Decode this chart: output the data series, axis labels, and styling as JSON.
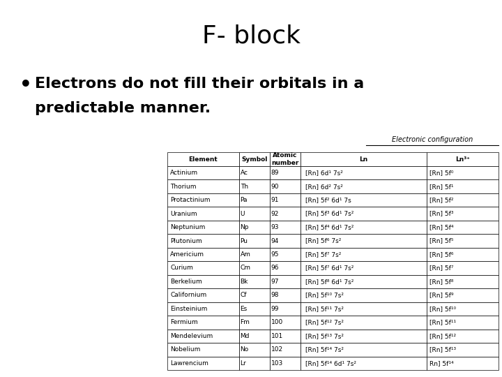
{
  "title": "F- block",
  "bullet_line1": "Electrons do not fill their orbitals in a",
  "bullet_line2": "predictable manner.",
  "table_title": "Electronic configuration",
  "col_headers": [
    "Element",
    "Symbol",
    "Atomic\nnumber",
    "Ln",
    "Ln³⁺"
  ],
  "rows": [
    [
      "Actinium",
      "Ac",
      "89",
      "[Rn] 6d¹ 7s²",
      "[Rn] 5f⁰"
    ],
    [
      "Thorium",
      "Th",
      "90",
      "[Rn] 6d² 7s²",
      "[Rn] 5f¹"
    ],
    [
      "Protactinium",
      "Pa",
      "91",
      "[Rn] 5f² 6d¹ 7s",
      "[Rn] 5f²"
    ],
    [
      "Uranium",
      "U",
      "92",
      "[Rn] 5f³ 6d¹ 7s²",
      "[Rn] 5f³"
    ],
    [
      "Neptunium",
      "Np",
      "93",
      "[Rn] 5f⁴ 6d¹ 7s²",
      "[Rn] 5f⁴"
    ],
    [
      "Plutonium",
      "Pu",
      "94",
      "[Rn] 5f⁶ 7s²",
      "[Rn] 5f⁵"
    ],
    [
      "Americium",
      "Am",
      "95",
      "[Rn] 5f⁷ 7s²",
      "[Rn] 5f⁶"
    ],
    [
      "Curium",
      "Cm",
      "96",
      "[Rn] 5f⁷ 6d¹ 7s²",
      "[Rn] 5f⁷"
    ],
    [
      "Berkelium",
      "Bk",
      "97",
      "[Rn] 5f⁸ 6d¹ 7s²",
      "[Rn] 5f⁸"
    ],
    [
      "Californium",
      "Cf",
      "98",
      "[Rn] 5f¹⁰ 7s²",
      "[Rn] 5f⁹"
    ],
    [
      "Einsteinium",
      "Es",
      "99",
      "[Rn] 5f¹¹ 7s²",
      "[Rn] 5f¹⁰"
    ],
    [
      "Fermium",
      "Fm",
      "100",
      "[Rn] 5f¹² 7s²",
      "[Rn] 5f¹¹"
    ],
    [
      "Mendelevium",
      "Md",
      "101",
      "[Rn] 5f¹³ 7s²",
      "[Rn] 5f¹²"
    ],
    [
      "Nobelium",
      "No",
      "102",
      "[Rn] 5f¹⁴ 7s²",
      "[Rn] 5f¹³"
    ],
    [
      "Lawrencium",
      "Lr",
      "103",
      "[Rn] 5f¹⁴ 6d¹ 7s²",
      "Rn] 5f¹⁴"
    ]
  ],
  "bg_color": "#ffffff",
  "title_fontsize": 26,
  "bullet_fontsize": 16,
  "table_fontsize": 6.5
}
